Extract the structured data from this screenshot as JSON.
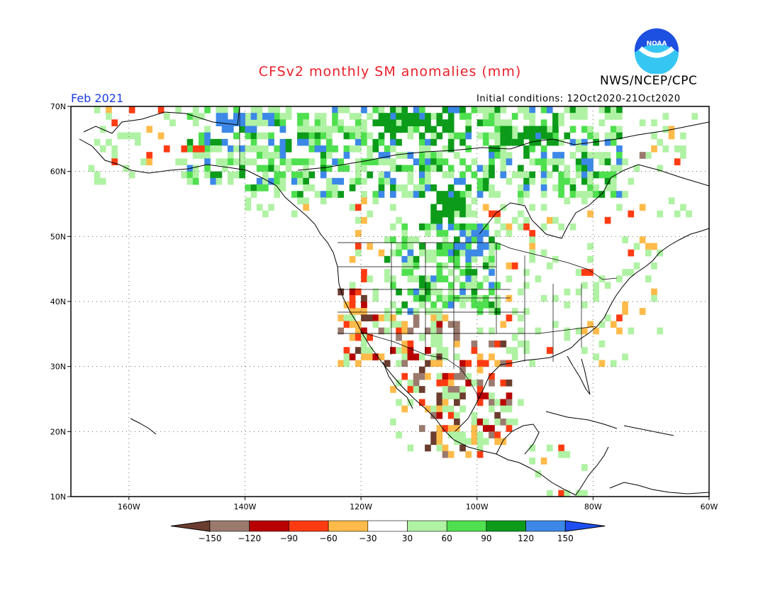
{
  "header": {
    "title": "CFSv2 monthly SM anomalies (mm)",
    "agency": "NWS/NCEP/CPC",
    "period": "Feb 2021",
    "initial_conditions": "Initial conditions: 12Oct2020-21Oct2020",
    "logo_text": "NOAA"
  },
  "map": {
    "lon_min": -170,
    "lon_max": -60,
    "lat_min": 10,
    "lat_max": 70,
    "lon_ticks": [
      {
        "value": -160,
        "label": "160W"
      },
      {
        "value": -140,
        "label": "140W"
      },
      {
        "value": -120,
        "label": "120W"
      },
      {
        "value": -100,
        "label": "100W"
      },
      {
        "value": -80,
        "label": "80W"
      },
      {
        "value": -60,
        "label": "60W"
      }
    ],
    "lat_ticks": [
      {
        "value": 70,
        "label": "70N"
      },
      {
        "value": 60,
        "label": "60N"
      },
      {
        "value": 50,
        "label": "50N"
      },
      {
        "value": 40,
        "label": "40N"
      },
      {
        "value": 30,
        "label": "30N"
      },
      {
        "value": 20,
        "label": "20N"
      },
      {
        "value": 10,
        "label": "10N"
      }
    ],
    "anomaly_regions": [
      {
        "lon": -145,
        "lat": 66,
        "w": 10,
        "h": 3,
        "level": "pos120"
      },
      {
        "lon": -118,
        "lat": 65,
        "w": 14,
        "h": 4,
        "level": "pos90"
      },
      {
        "lon": -108,
        "lat": 52,
        "w": 6,
        "h": 6,
        "level": "pos90"
      },
      {
        "lon": -104,
        "lat": 47,
        "w": 6,
        "h": 4,
        "level": "pos120"
      },
      {
        "lon": -122,
        "lat": 38,
        "w": 2,
        "h": 4,
        "level": "neg60"
      },
      {
        "lon": -105,
        "lat": 34,
        "w": 2,
        "h": 3,
        "level": "neg120"
      },
      {
        "lon": -96,
        "lat": 64,
        "w": 10,
        "h": 3,
        "level": "pos90"
      },
      {
        "lon": -74,
        "lat": 62,
        "w": 5,
        "h": 1,
        "level": "neg120"
      },
      {
        "lon": -155,
        "lat": 63,
        "w": 8,
        "h": 1,
        "level": "neg60"
      }
    ]
  },
  "colorbar": {
    "levels": [
      {
        "key": "neg150",
        "color": "#6b3d2e"
      },
      {
        "key": "neg120",
        "color": "#9b7a6e"
      },
      {
        "key": "neg90",
        "color": "#b80000"
      },
      {
        "key": "neg60",
        "color": "#ff3b12"
      },
      {
        "key": "neg30",
        "color": "#ffbb4a"
      },
      {
        "key": "zero",
        "color": "#ffffff"
      },
      {
        "key": "pos30",
        "color": "#b0f2a4"
      },
      {
        "key": "pos60",
        "color": "#4fe04f"
      },
      {
        "key": "pos90",
        "color": "#0c9c1a"
      },
      {
        "key": "pos120",
        "color": "#3c88e8"
      },
      {
        "key": "pos150",
        "color": "#1f4ff2"
      }
    ],
    "labels": [
      "-150",
      "-120",
      "-90",
      "-60",
      "-30",
      "30",
      "60",
      "90",
      "120",
      "150"
    ]
  }
}
